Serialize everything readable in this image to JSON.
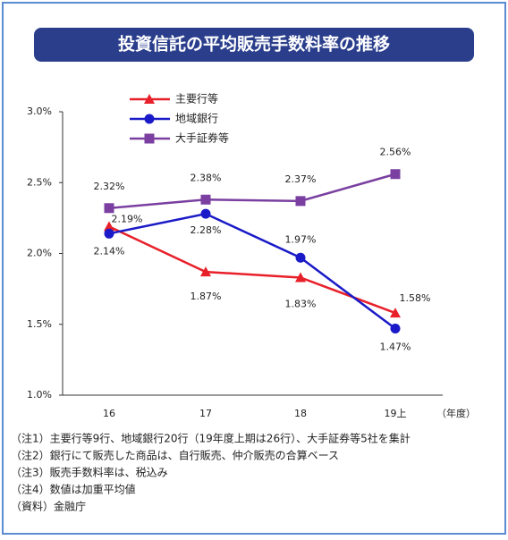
{
  "chart_data": {
    "type": "line",
    "title": "投資信託の平均販売手数料率の推移",
    "categories": [
      "16",
      "17",
      "18",
      "19上"
    ],
    "x_unit": "（年度）",
    "ylim": [
      1.0,
      3.0
    ],
    "yticks": [
      {
        "value": 1.0,
        "label": "1.0%"
      },
      {
        "value": 1.5,
        "label": "1.5%"
      },
      {
        "value": 2.0,
        "label": "2.0%"
      },
      {
        "value": 2.5,
        "label": "2.5%"
      },
      {
        "value": 3.0,
        "label": "3.0%"
      }
    ],
    "series": [
      {
        "name": "主要行等",
        "color": "#e8202a",
        "marker": "triangle",
        "values": [
          2.19,
          1.87,
          1.83,
          1.58
        ],
        "value_labels": [
          "2.19%",
          "1.87%",
          "1.83%",
          "1.58%"
        ]
      },
      {
        "name": "地域銀行",
        "color": "#1a1ac8",
        "marker": "circle",
        "values": [
          2.14,
          2.28,
          1.97,
          1.47
        ],
        "value_labels": [
          "2.14%",
          "2.28%",
          "1.97%",
          "1.47%"
        ]
      },
      {
        "name": "大手証券等",
        "color": "#7a3fa0",
        "marker": "square",
        "values": [
          2.32,
          2.38,
          2.37,
          2.56
        ],
        "value_labels": [
          "2.32%",
          "2.38%",
          "2.37%",
          "2.56%"
        ]
      }
    ],
    "notes": [
      "（注1）主要行等9行、地域銀行20行（19年度上期は26行）、大手証券等5社を集計",
      "（注2）銀行にて販売した商品は、自行販売、仲介販売の合算ベース",
      "（注3）販売手数料率は、税込み",
      "（注4）数値は加重平均値",
      "（資料）金融庁"
    ]
  }
}
